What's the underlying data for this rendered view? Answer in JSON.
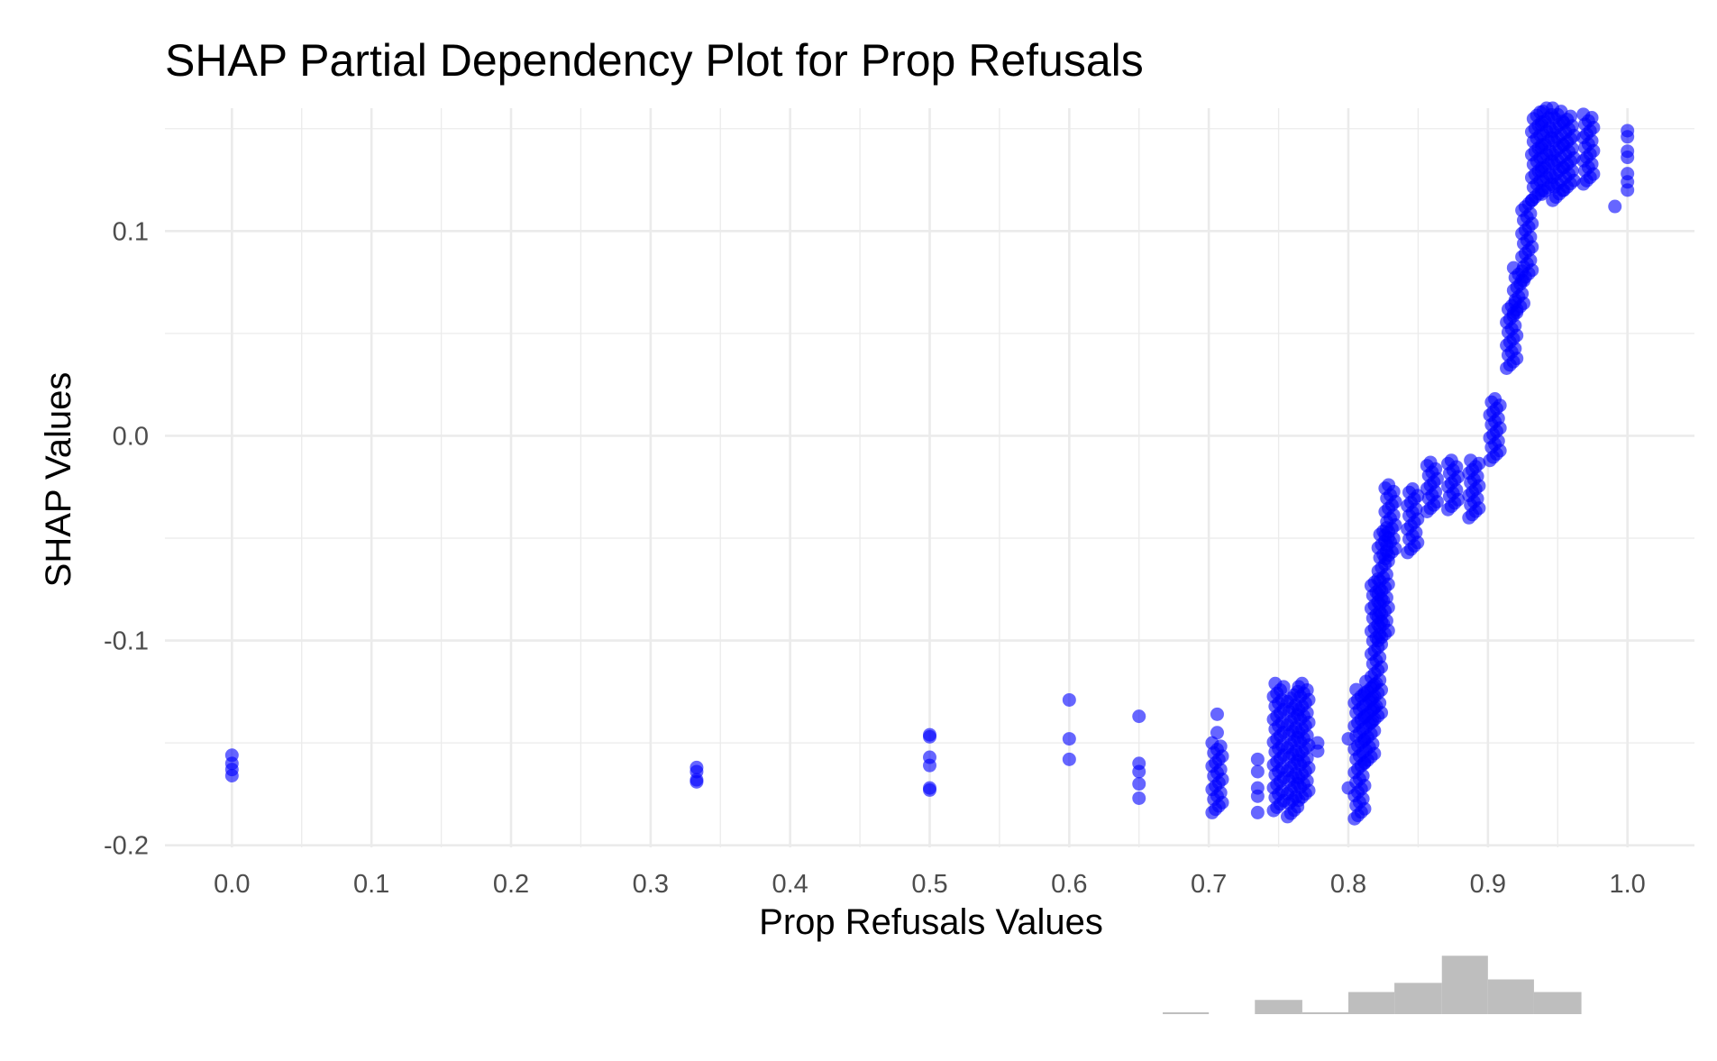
{
  "chart_data": {
    "type": "scatter",
    "title": "SHAP Partial Dependency Plot for Prop Refusals",
    "xlabel": "Prop Refusals Values",
    "ylabel": "SHAP Values",
    "xlim": [
      -0.048,
      1.048
    ],
    "ylim": [
      -0.201,
      0.16
    ],
    "x_ticks": [
      "0.0",
      "0.1",
      "0.2",
      "0.3",
      "0.4",
      "0.5",
      "0.6",
      "0.7",
      "0.8",
      "0.9",
      "1.0"
    ],
    "y_ticks": [
      "-0.2",
      "-0.1",
      "0.0",
      "0.1"
    ],
    "grid": true,
    "point_color": "#0000ff",
    "point_opacity": 0.6,
    "clusters": [
      {
        "x": 0.0,
        "y_values": [
          -0.156,
          -0.16,
          -0.163,
          -0.166
        ]
      },
      {
        "x": 0.333,
        "y_values": [
          -0.162,
          -0.164,
          -0.168,
          -0.169
        ]
      },
      {
        "x": 0.5,
        "y_values": [
          -0.146,
          -0.147,
          -0.157,
          -0.161,
          -0.172,
          -0.173
        ]
      },
      {
        "x": 0.6,
        "y_values": [
          -0.129,
          -0.148,
          -0.158
        ]
      },
      {
        "x": 0.65,
        "y_values": [
          -0.137,
          -0.16,
          -0.164,
          -0.17,
          -0.177
        ]
      },
      {
        "x": 0.706,
        "y_range": [
          -0.184,
          -0.15
        ],
        "extra": [
          -0.136,
          -0.145
        ]
      },
      {
        "x": 0.735,
        "y_values": [
          -0.158,
          -0.164,
          -0.172,
          -0.176,
          -0.184
        ]
      },
      {
        "x": 0.75,
        "y_range": [
          -0.183,
          -0.121
        ]
      },
      {
        "x": 0.76,
        "y_range": [
          -0.186,
          -0.125
        ]
      },
      {
        "x": 0.768,
        "y_range": [
          -0.178,
          -0.121
        ]
      },
      {
        "x": 0.778,
        "y_values": [
          -0.15,
          -0.154
        ]
      },
      {
        "x": 0.8,
        "y_values": [
          -0.148,
          -0.172
        ]
      },
      {
        "x": 0.808,
        "y_range": [
          -0.187,
          -0.124
        ]
      },
      {
        "x": 0.815,
        "y_range": [
          -0.16,
          -0.12
        ]
      },
      {
        "x": 0.82,
        "y_range": [
          -0.14,
          -0.07
        ]
      },
      {
        "x": 0.825,
        "y_range": [
          -0.1,
          -0.045
        ]
      },
      {
        "x": 0.83,
        "y_range": [
          -0.06,
          -0.024
        ]
      },
      {
        "x": 0.846,
        "y_range": [
          -0.057,
          -0.026
        ]
      },
      {
        "x": 0.86,
        "y_range": [
          -0.037,
          -0.013
        ]
      },
      {
        "x": 0.875,
        "y_range": [
          -0.036,
          -0.012
        ]
      },
      {
        "x": 0.89,
        "y_range": [
          -0.04,
          -0.012
        ]
      },
      {
        "x": 0.905,
        "y_range": [
          -0.012,
          0.018
        ]
      },
      {
        "x": 0.917,
        "y_range": [
          0.033,
          0.065
        ]
      },
      {
        "x": 0.922,
        "y_range": [
          0.06,
          0.082
        ]
      },
      {
        "x": 0.928,
        "y_range": [
          0.076,
          0.115
        ]
      },
      {
        "x": 0.935,
        "y_range": [
          0.115,
          0.158
        ]
      },
      {
        "x": 0.942,
        "y_range": [
          0.118,
          0.16
        ]
      },
      {
        "x": 0.95,
        "y_range": [
          0.115,
          0.16
        ]
      },
      {
        "x": 0.958,
        "y_range": [
          0.12,
          0.156
        ]
      },
      {
        "x": 0.972,
        "y_range": [
          0.123,
          0.157
        ]
      },
      {
        "x": 0.991,
        "y_values": [
          0.112
        ]
      },
      {
        "x": 1.0,
        "y_values": [
          0.12,
          0.124,
          0.128,
          0.136,
          0.139,
          0.146,
          0.149
        ]
      }
    ],
    "histogram": {
      "bins": [
        {
          "x0": 0.667,
          "x1": 0.7,
          "height": 0.05
        },
        {
          "x0": 0.733,
          "x1": 0.767,
          "height": 0.45
        },
        {
          "x0": 0.767,
          "x1": 0.8,
          "height": 0.05
        },
        {
          "x0": 0.8,
          "x1": 0.833,
          "height": 0.7
        },
        {
          "x0": 0.833,
          "x1": 0.867,
          "height": 0.99
        },
        {
          "x0": 0.867,
          "x1": 0.9,
          "height": 1.85
        },
        {
          "x0": 0.9,
          "x1": 0.933,
          "height": 1.1
        },
        {
          "x0": 0.933,
          "x1": 0.967,
          "height": 0.7
        }
      ],
      "color": "#bebebe"
    }
  }
}
